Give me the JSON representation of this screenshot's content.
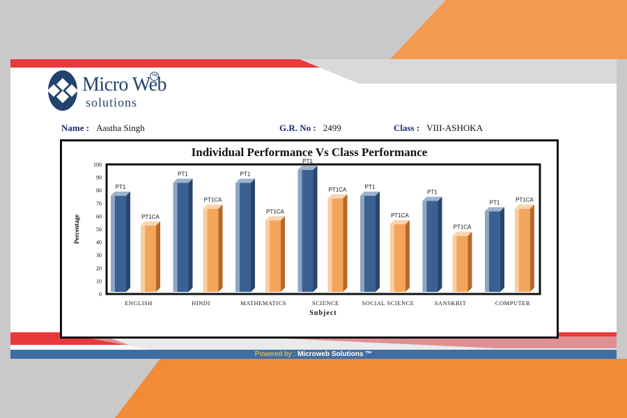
{
  "logo": {
    "title": "Micro Web",
    "tm": "TM",
    "subtitle": "solutions"
  },
  "student": {
    "name_label": "Name :",
    "name": "Aastha Singh",
    "gr_label": "G.R. No :",
    "gr": "2499",
    "class_label": "Class :",
    "class": "VIII-ASHOKA"
  },
  "colors": {
    "pt1": "#3b6193",
    "pt1ca": "#f2a55b",
    "red": "#e8393d",
    "orange": "#f28c38",
    "navy": "#22436e",
    "footer": "#3f6ea5"
  },
  "chart_data": {
    "type": "bar",
    "title": "Individual Performance Vs Class Performance",
    "xlabel": "Subject",
    "ylabel": "Percentage",
    "ylim": [
      0,
      100
    ],
    "yticks": [
      0,
      10,
      20,
      30,
      40,
      50,
      60,
      70,
      80,
      90,
      100
    ],
    "categories": [
      "ENGLISH",
      "HINDI",
      "MATHEMATICS",
      "SCIENCE",
      "SOCIAL SCIENCE",
      "SANSKRIT",
      "COMPUTER"
    ],
    "series": [
      {
        "name": "PT1",
        "values": [
          79,
          89,
          89,
          99,
          79,
          75,
          67
        ]
      },
      {
        "name": "PT1CA",
        "values": [
          56,
          69,
          60,
          77,
          57,
          48,
          69
        ]
      }
    ],
    "grid": false
  },
  "footer": {
    "prefix": "Powered by :",
    "brand": "Microweb Solutions ™"
  }
}
